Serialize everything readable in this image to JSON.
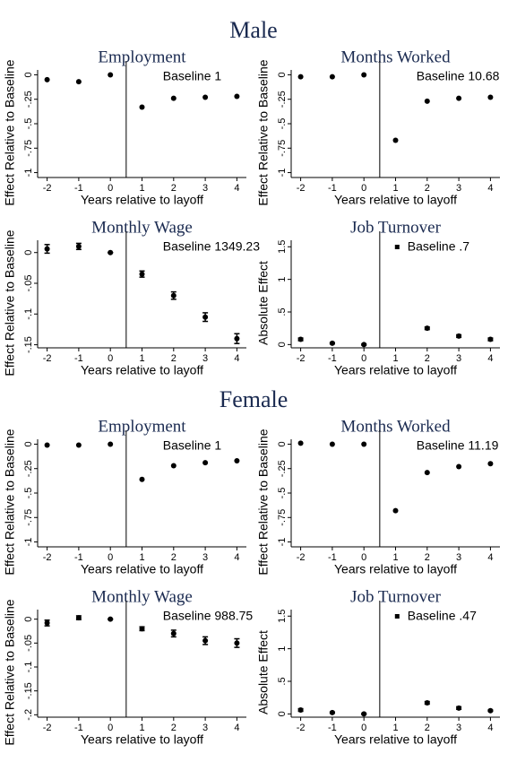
{
  "sections": [
    {
      "title": "Male"
    },
    {
      "title": "Female"
    }
  ],
  "chart_data": [
    {
      "type": "scatter",
      "title": "Employment",
      "annotation": "Baseline 1",
      "xlabel": "Years relative to layoff",
      "ylabel": "Effect Relative to Baseline",
      "x": [
        -2,
        -1,
        0,
        1,
        2,
        3,
        4
      ],
      "values": [
        -0.05,
        -0.07,
        0,
        -0.33,
        -0.24,
        -0.23,
        -0.22
      ],
      "xlim": [
        -2.3,
        4.3
      ],
      "xticks": [
        -2,
        -1,
        0,
        1,
        2,
        3,
        4
      ],
      "ylim": [
        -1.05,
        0.05
      ],
      "yticks": [
        0,
        {
          "value": -0.25,
          "label": "-.25"
        },
        {
          "value": -0.5,
          "label": "-.5"
        },
        {
          "value": -0.75,
          "label": "-.75"
        },
        -1
      ],
      "vline": 0.5,
      "color": "#000000"
    },
    {
      "type": "scatter",
      "title": "Months Worked",
      "annotation": "Baseline 10.68",
      "xlabel": "Years relative to layoff",
      "ylabel": "Effect Relative to Baseline",
      "x": [
        -2,
        -1,
        0,
        1,
        2,
        3,
        4
      ],
      "values": [
        -0.02,
        -0.02,
        0,
        -0.67,
        -0.27,
        -0.24,
        -0.23
      ],
      "xlim": [
        -2.3,
        4.3
      ],
      "xticks": [
        -2,
        -1,
        0,
        1,
        2,
        3,
        4
      ],
      "ylim": [
        -1.05,
        0.05
      ],
      "yticks": [
        0,
        {
          "value": -0.25,
          "label": "-.25"
        },
        {
          "value": -0.5,
          "label": "-.5"
        },
        {
          "value": -0.75,
          "label": "-.75"
        },
        -1
      ],
      "vline": 0.5,
      "color": "#000000"
    },
    {
      "type": "scatter",
      "title": "Monthly Wage",
      "annotation": "Baseline 1349.23",
      "xlabel": "Years relative to layoff",
      "ylabel": "Effect Relative to Baseline",
      "x": [
        -2,
        -1,
        0,
        1,
        2,
        3,
        4
      ],
      "values": [
        0.006,
        0.01,
        0,
        -0.035,
        -0.07,
        -0.105,
        -0.14
      ],
      "errors": [
        0.007,
        0.005,
        0,
        0.005,
        0.006,
        0.007,
        0.008
      ],
      "xlim": [
        -2.3,
        4.3
      ],
      "xticks": [
        -2,
        -1,
        0,
        1,
        2,
        3,
        4
      ],
      "ylim": [
        -0.155,
        0.02
      ],
      "yticks": [
        0,
        {
          "value": -0.05,
          "label": "-.05"
        },
        {
          "value": -0.1,
          "label": "-.1"
        },
        {
          "value": -0.15,
          "label": "-.15"
        }
      ],
      "vline": 0.5,
      "color": "#000000"
    },
    {
      "type": "scatter",
      "title": "Job Turnover",
      "annotation": "Baseline .7",
      "xlabel": "Years relative to layoff",
      "ylabel": "Absolute Effect",
      "x": [
        -2,
        -1,
        0,
        1,
        2,
        3,
        4
      ],
      "values": [
        0.08,
        0.02,
        0,
        null,
        0.25,
        0.13,
        0.08
      ],
      "errors": [
        0.02,
        0.01,
        0.01,
        null,
        0.02,
        0.02,
        0.02
      ],
      "xlim": [
        -2.3,
        4.3
      ],
      "xticks": [
        -2,
        -1,
        0,
        1,
        2,
        3,
        4
      ],
      "ylim": [
        -0.05,
        1.6
      ],
      "yticks": [
        0,
        {
          "value": 0.5,
          "label": ".5"
        },
        1,
        1.5
      ],
      "vline": 0.5,
      "color": "#000000"
    },
    {
      "type": "scatter",
      "title": "Employment",
      "annotation": "Baseline 1",
      "xlabel": "Years relative to layoff",
      "ylabel": "Effect Relative to Baseline",
      "x": [
        -2,
        -1,
        0,
        1,
        2,
        3,
        4
      ],
      "values": [
        -0.01,
        -0.01,
        0,
        -0.36,
        -0.22,
        -0.19,
        -0.17
      ],
      "xlim": [
        -2.3,
        4.3
      ],
      "xticks": [
        -2,
        -1,
        0,
        1,
        2,
        3,
        4
      ],
      "ylim": [
        -1.05,
        0.05
      ],
      "yticks": [
        0,
        {
          "value": -0.25,
          "label": "-.25"
        },
        {
          "value": -0.5,
          "label": "-.5"
        },
        {
          "value": -0.75,
          "label": "-.75"
        },
        -1
      ],
      "vline": 0.5,
      "color": "#000000"
    },
    {
      "type": "scatter",
      "title": "Months Worked",
      "annotation": "Baseline 11.19",
      "xlabel": "Years relative to layoff",
      "ylabel": "Effect Relative to Baseline",
      "x": [
        -2,
        -1,
        0,
        1,
        2,
        3,
        4
      ],
      "values": [
        0.01,
        0,
        0,
        -0.68,
        -0.29,
        -0.23,
        -0.2
      ],
      "xlim": [
        -2.3,
        4.3
      ],
      "xticks": [
        -2,
        -1,
        0,
        1,
        2,
        3,
        4
      ],
      "ylim": [
        -1.05,
        0.05
      ],
      "yticks": [
        0,
        {
          "value": -0.25,
          "label": "-.25"
        },
        {
          "value": -0.5,
          "label": "-.5"
        },
        {
          "value": -0.75,
          "label": "-.75"
        },
        -1
      ],
      "vline": 0.5,
      "color": "#000000"
    },
    {
      "type": "scatter",
      "title": "Monthly Wage",
      "annotation": "Baseline 988.75",
      "xlabel": "Years relative to layoff",
      "ylabel": "Effect Relative to Baseline",
      "x": [
        -2,
        -1,
        0,
        1,
        2,
        3,
        4
      ],
      "values": [
        -0.008,
        0.003,
        0,
        -0.02,
        -0.03,
        -0.045,
        -0.05
      ],
      "errors": [
        0.006,
        0.004,
        0,
        0.004,
        0.007,
        0.008,
        0.009
      ],
      "xlim": [
        -2.3,
        4.3
      ],
      "xticks": [
        -2,
        -1,
        0,
        1,
        2,
        3,
        4
      ],
      "ylim": [
        -0.205,
        0.02
      ],
      "yticks": [
        0,
        {
          "value": -0.05,
          "label": "-.05"
        },
        {
          "value": -0.1,
          "label": "-.1"
        },
        {
          "value": -0.15,
          "label": "-.15"
        },
        {
          "value": -0.2,
          "label": "-.2"
        }
      ],
      "vline": 0.5,
      "color": "#000000"
    },
    {
      "type": "scatter",
      "title": "Job Turnover",
      "annotation": "Baseline .47",
      "xlabel": "Years relative to layoff",
      "ylabel": "Absolute Effect",
      "x": [
        -2,
        -1,
        0,
        1,
        2,
        3,
        4
      ],
      "values": [
        0.06,
        0.02,
        0,
        null,
        0.17,
        0.09,
        0.05
      ],
      "errors": [
        0.02,
        0.01,
        0.01,
        null,
        0.02,
        0.02,
        0.01
      ],
      "xlim": [
        -2.3,
        4.3
      ],
      "xticks": [
        -2,
        -1,
        0,
        1,
        2,
        3,
        4
      ],
      "ylim": [
        -0.05,
        1.6
      ],
      "yticks": [
        0,
        {
          "value": 0.5,
          "label": ".5"
        },
        1,
        1.5
      ],
      "vline": 0.5,
      "color": "#000000"
    }
  ]
}
